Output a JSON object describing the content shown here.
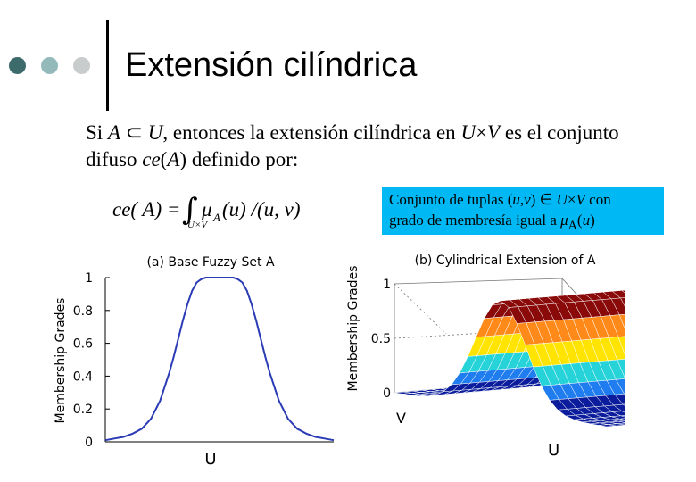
{
  "slide": {
    "title": "Extensión cilíndrica",
    "body_parts": [
      "Si ",
      "A",
      " ⊂ ",
      "U",
      ", entonces la extensión cilíndrica en ",
      "U",
      "×",
      "V",
      " es el conjunto difuso ",
      "ce",
      "(",
      "A",
      ") definido por:"
    ],
    "formula": {
      "lhs": "ce( A) = ",
      "integral": "∫",
      "subscript": "U×V",
      "mu": "μ",
      "mu_sub": "A",
      "rhs": "(u) /(u, v)"
    },
    "callout": {
      "line1": [
        "Conjunto de tuplas (",
        "u",
        ",",
        "v",
        ") ∈ ",
        "U",
        "×",
        "V",
        " con"
      ],
      "line2": [
        "grado de membresía igual a ",
        "μ",
        "A",
        "(",
        "u",
        ")"
      ]
    }
  },
  "chart_data": [
    {
      "type": "line",
      "title": "(a) Base Fuzzy Set A",
      "xlabel": "U",
      "ylabel": "Membership Grades",
      "ylim": [
        0,
        1
      ],
      "yticks": [
        "0",
        "0.2",
        "0.4",
        "0.6",
        "0.8",
        "1"
      ],
      "grid": false,
      "series": [
        {
          "x": [
            0,
            0.04,
            0.08,
            0.12,
            0.16,
            0.2,
            0.24,
            0.28,
            0.3,
            0.32,
            0.34,
            0.36,
            0.38,
            0.4,
            0.42,
            0.44,
            0.46,
            0.5,
            0.54,
            0.56,
            0.58,
            0.6,
            0.62,
            0.64,
            0.66,
            0.68,
            0.7,
            0.72,
            0.76,
            0.8,
            0.84,
            0.88,
            0.92,
            0.96,
            1
          ],
          "y": [
            0.01,
            0.02,
            0.03,
            0.05,
            0.08,
            0.14,
            0.25,
            0.42,
            0.52,
            0.63,
            0.74,
            0.84,
            0.92,
            0.97,
            0.99,
            1,
            1,
            1,
            1,
            1,
            0.99,
            0.97,
            0.92,
            0.84,
            0.74,
            0.63,
            0.52,
            0.42,
            0.25,
            0.14,
            0.08,
            0.05,
            0.03,
            0.02,
            0.01
          ],
          "color": "#2a3bb5"
        }
      ]
    },
    {
      "type": "surface",
      "title": "(b) Cylindrical Extension of A",
      "xlabel": "U",
      "ylabel": "V",
      "zlabel": "Membership Grades",
      "zlim": [
        0,
        1
      ],
      "zticks": [
        "0",
        "0.5",
        "1"
      ],
      "colormap": [
        "#0b1d9c",
        "#1f7df0",
        "#25d3d8",
        "#8ff07a",
        "#ffe400",
        "#ff8a1a",
        "#d21414",
        "#8a0a0a"
      ]
    }
  ]
}
